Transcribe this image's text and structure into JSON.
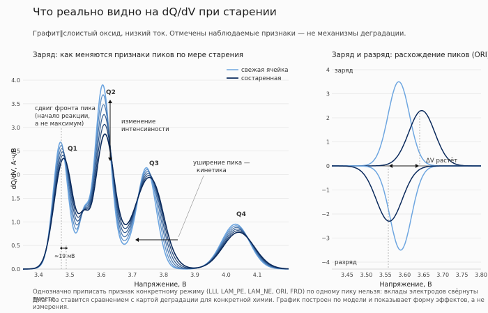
{
  "header": {
    "title": "Что реально видно на dQ/dV при старении",
    "subtitle": "Графит‖слоистый оксид, низкий ток. Отмечены наблюдаемые признаки — не механизмы деградации."
  },
  "footer": {
    "line1": "Однозначно приписать признак конкретному режиму (LLI, LAM_PE, LAM_NE, ORI, FRD) по одному пику нельзя: вклады электродов свёрнуты вместе.",
    "line2": "Диагноз ставится сравнением с картой деградации для конкретной химии. График построен по модели и показывает форму эффектов, а не измерения."
  },
  "colors": {
    "fresh": "#6ea6e0",
    "aged": "#0b2a5c",
    "grid": "#e6e6e6",
    "axis": "#cccccc"
  },
  "chart_data": [
    {
      "type": "line",
      "title": "Заряд: как меняются признаки пиков по мере старения",
      "xlabel": "Напряжение, В",
      "ylabel": "dQ/dV, А·ч/В",
      "xlim": [
        3.35,
        4.2
      ],
      "ylim": [
        0,
        4.0
      ],
      "xticks": [
        "3.4",
        "3.5",
        "3.6",
        "3.7",
        "3.8",
        "3.9",
        "4.0",
        "4.1"
      ],
      "yticks": [
        "0.0",
        "0.5",
        "1.0",
        "1.5",
        "2.0",
        "2.5",
        "3.0",
        "3.5",
        "4.0"
      ],
      "legend": {
        "position": "top-right",
        "fresh": "свежая ячейка",
        "aged": "состаренная"
      },
      "n_series": 6,
      "aging_steps": [
        0,
        0.2,
        0.4,
        0.6,
        0.8,
        1.0
      ],
      "peaks": [
        {
          "label": "Q1",
          "center_fresh": 3.47,
          "center_aged": 3.48,
          "height_fresh": 2.3,
          "height_aged": 1.95,
          "width_fresh": 0.022,
          "width_aged": 0.028
        },
        {
          "label": "Q2",
          "center_fresh": 3.605,
          "center_aged": 3.612,
          "height_fresh": 3.5,
          "height_aged": 2.45,
          "width_fresh": 0.024,
          "width_aged": 0.029
        },
        {
          "label": "Q3",
          "center_fresh": 3.745,
          "center_aged": 3.755,
          "height_fresh": 1.75,
          "height_aged": 1.55,
          "width_fresh": 0.028,
          "width_aged": 0.045
        },
        {
          "label": "Q4",
          "center_fresh": 4.03,
          "center_aged": 4.04,
          "height_fresh": 0.95,
          "height_aged": 0.78,
          "width_fresh": 0.045,
          "width_aged": 0.05
        }
      ],
      "base_level": 0.4,
      "annotations": {
        "shift": [
          "сдвиг фронта пика",
          "(начало реакции,",
          "а не максимум)"
        ],
        "shift_value": "≈19 мВ",
        "intensity": [
          "изменение",
          "интенсивности"
        ],
        "broadening": [
          "уширение пика —",
          "кинетика"
        ]
      }
    },
    {
      "type": "line",
      "title": "Заряд и разряд: расхождение пиков (ORI)",
      "xlabel": "Напряжение, В",
      "xlim": [
        3.41,
        3.8
      ],
      "ylim": [
        -4.2,
        4.2
      ],
      "xticks": [
        "3.45",
        "3.50",
        "3.55",
        "3.60",
        "3.65",
        "3.70",
        "3.75",
        "3.80"
      ],
      "yticks": [
        "4",
        "3",
        "2",
        "1",
        "0",
        "−1",
        "−2",
        "−3",
        "−4"
      ],
      "series": [
        {
          "id": "fresh_charge",
          "center": 3.585,
          "height": 3.5,
          "width": 0.028
        },
        {
          "id": "aged_charge",
          "center": 3.645,
          "height": 2.3,
          "width": 0.034
        },
        {
          "id": "fresh_discharge",
          "center": 3.59,
          "height": -3.5,
          "width": 0.028
        },
        {
          "id": "aged_discharge",
          "center": 3.56,
          "height": -2.3,
          "width": 0.034
        }
      ],
      "labels": {
        "charge": "заряд",
        "discharge": "разряд",
        "delta": "ΔV растёт"
      }
    }
  ]
}
